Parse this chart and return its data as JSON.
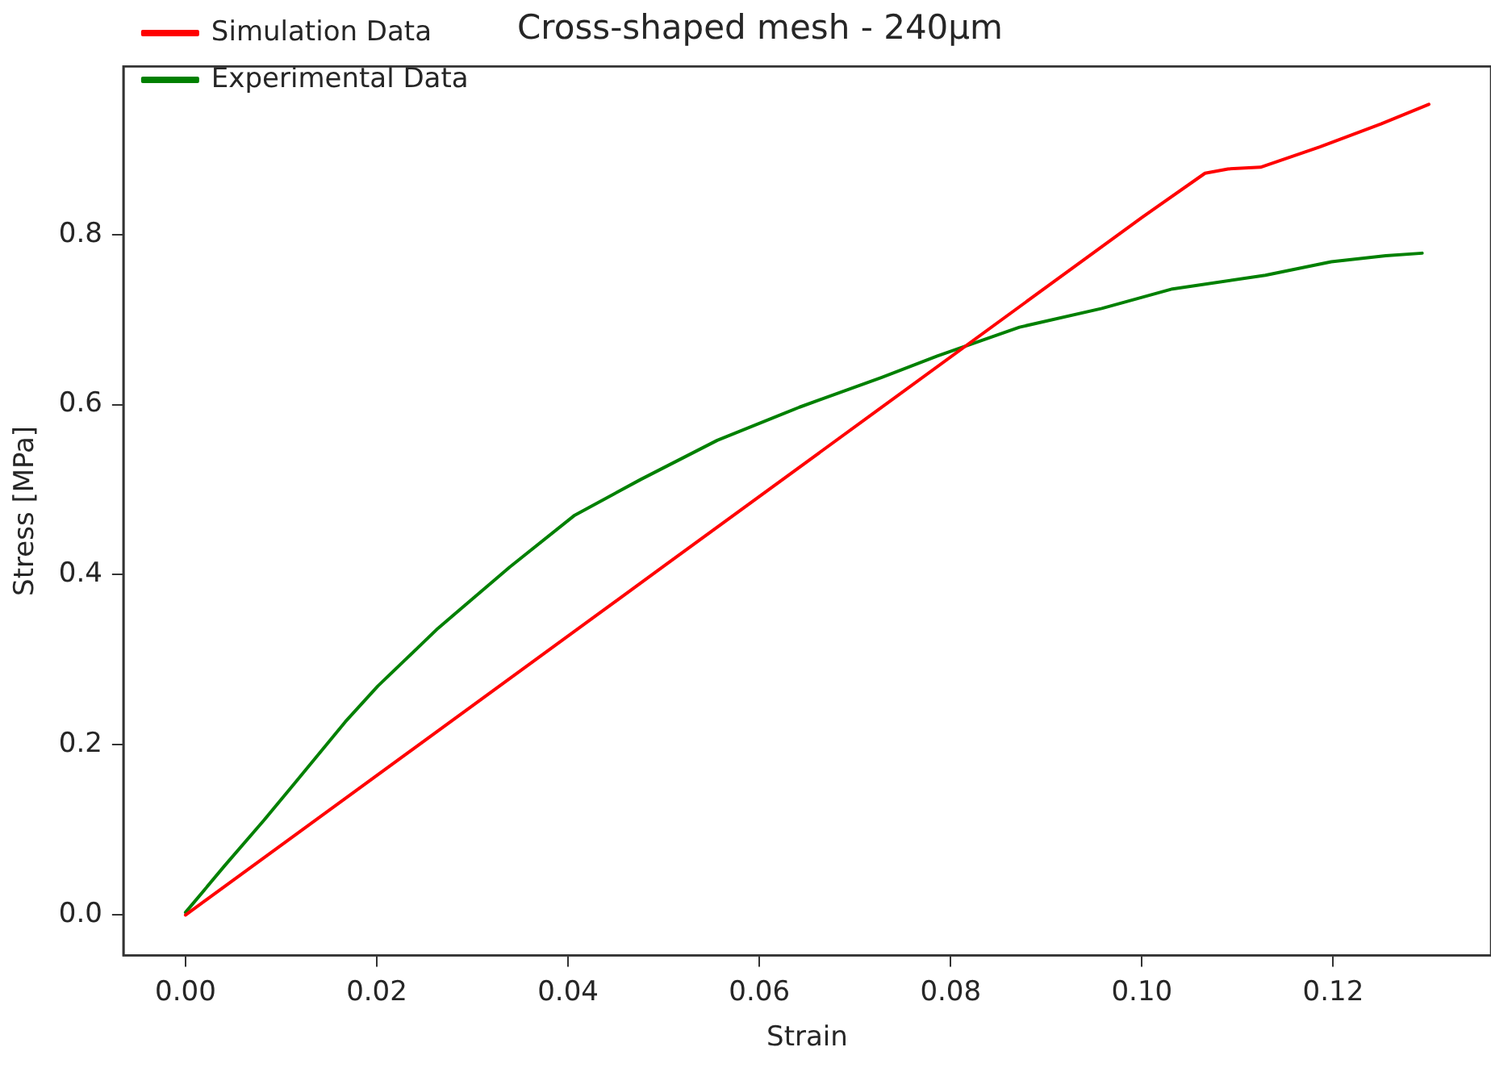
{
  "chart_data": {
    "type": "line",
    "title": "Cross-shaped mesh - 240μm",
    "xlabel": "Strain",
    "ylabel": "Stress [MPa]",
    "xlim": [
      -0.0065,
      0.1365
    ],
    "ylim": [
      -0.0475,
      0.9975
    ],
    "xticks": [
      {
        "value": 0,
        "label": "0.00"
      },
      {
        "value": 0.02,
        "label": "0.02"
      },
      {
        "value": 0.04,
        "label": "0.04"
      },
      {
        "value": 0.06,
        "label": "0.06"
      },
      {
        "value": 0.08,
        "label": "0.08"
      },
      {
        "value": 0.1,
        "label": "0.10"
      },
      {
        "value": 0.12,
        "label": "0.12"
      }
    ],
    "yticks": [
      {
        "value": 0,
        "label": "0.0"
      },
      {
        "value": 0.2,
        "label": "0.2"
      },
      {
        "value": 0.4,
        "label": "0.4"
      },
      {
        "value": 0.6,
        "label": "0.6"
      },
      {
        "value": 0.8,
        "label": "0.8"
      }
    ],
    "grid": false,
    "legend": "top left",
    "marker": "none",
    "line_style": "solid",
    "series": [
      {
        "name": "Simulation Data",
        "color": "#ff0000",
        "x": [
          0,
          0.05,
          0.1,
          0.1066,
          0.109,
          0.1124,
          0.1186,
          0.125,
          0.13
        ],
        "values": [
          0,
          0.41,
          0.82,
          0.872,
          0.877,
          0.879,
          0.903,
          0.93,
          0.953
        ]
      },
      {
        "name": "Experimental Data",
        "color": "#008000",
        "x": [
          0,
          0.0041,
          0.0081,
          0.0115,
          0.0167,
          0.0201,
          0.0264,
          0.0339,
          0.0407,
          0.0476,
          0.0556,
          0.0642,
          0.0728,
          0.0786,
          0.0872,
          0.0958,
          0.1032,
          0.1129,
          0.1198,
          0.1255,
          0.1293
        ],
        "values": [
          0.003,
          0.058,
          0.11,
          0.156,
          0.227,
          0.269,
          0.337,
          0.409,
          0.47,
          0.512,
          0.558,
          0.597,
          0.632,
          0.657,
          0.691,
          0.713,
          0.736,
          0.752,
          0.768,
          0.775,
          0.778
        ]
      }
    ]
  }
}
